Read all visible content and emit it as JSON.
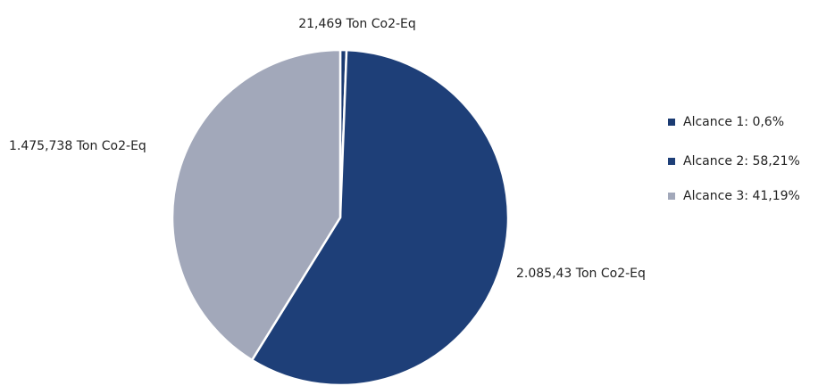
{
  "chart_data": {
    "type": "pie",
    "categories": [
      "Alcance 1: 0,6%",
      "Alcance 2: 58,21%",
      "Alcance 3: 41,19%"
    ],
    "values": [
      21.469,
      2085.43,
      1475.738
    ],
    "value_labels": [
      "21,469 Ton Co2-Eq",
      "2.085,43 Ton Co2-Eq",
      "1.475,738 Ton Co2-Eq"
    ],
    "colors": [
      "#1b3b72",
      "#1e3f78",
      "#a2a8ba"
    ],
    "legend": "right"
  }
}
